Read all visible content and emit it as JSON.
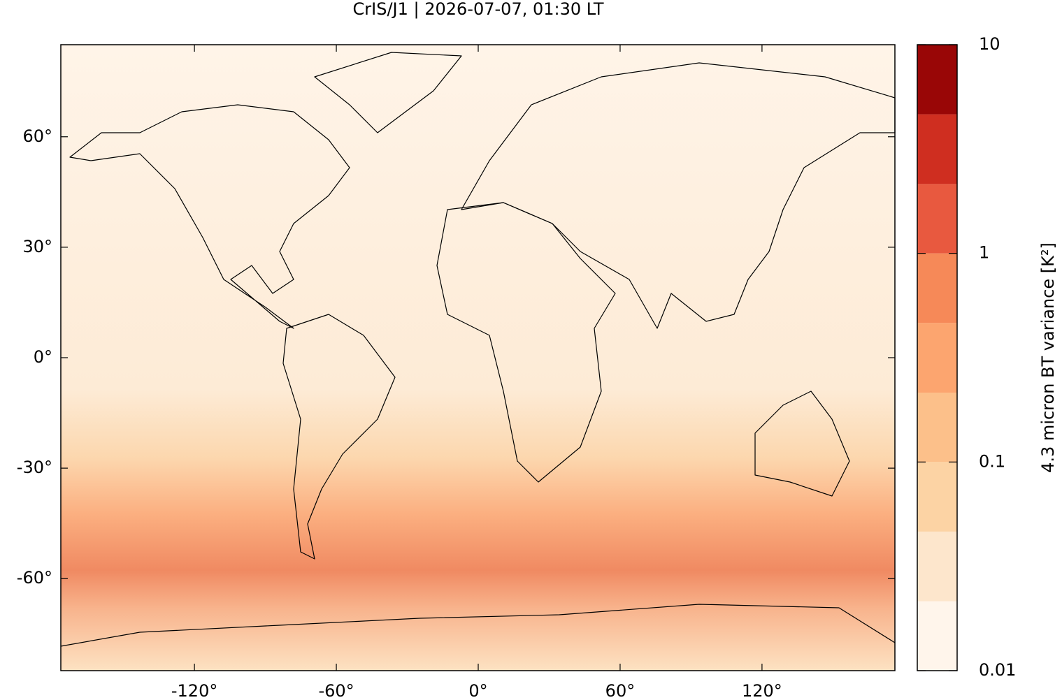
{
  "chart_data": {
    "type": "map",
    "title": "CrIS/J1 | 2026-07-07, 01:30 LT",
    "xlim": [
      -176.5,
      176.2
    ],
    "ylim": [
      -85,
      85
    ],
    "xticks": [
      {
        "value": -120,
        "label": "-120°"
      },
      {
        "value": -60,
        "label": "-60°"
      },
      {
        "value": 0,
        "label": "0°"
      },
      {
        "value": 60,
        "label": "60°"
      },
      {
        "value": 120,
        "label": "120°"
      }
    ],
    "yticks": [
      {
        "value": -60,
        "label": "-60°"
      },
      {
        "value": -30,
        "label": "-30°"
      },
      {
        "value": 0,
        "label": "0°"
      },
      {
        "value": 30,
        "label": "30°"
      },
      {
        "value": 60,
        "label": "60°"
      }
    ],
    "grid": false,
    "colorbar": {
      "label": "4.3 micron BT variance [K²]",
      "scale": "log",
      "zlim": [
        0.01,
        10
      ],
      "zticks": [
        0.01,
        0.1,
        1,
        10
      ],
      "levels": [
        0.01,
        0.0215,
        0.0464,
        0.1,
        0.215,
        0.464,
        1,
        2.15,
        4.64,
        10
      ],
      "colors": [
        "#fff5eb",
        "#fde6cc",
        "#fcd3a4",
        "#fcc08a",
        "#fca56f",
        "#f68958",
        "#e8593f",
        "#cf2e20",
        "#990606"
      ]
    }
  }
}
